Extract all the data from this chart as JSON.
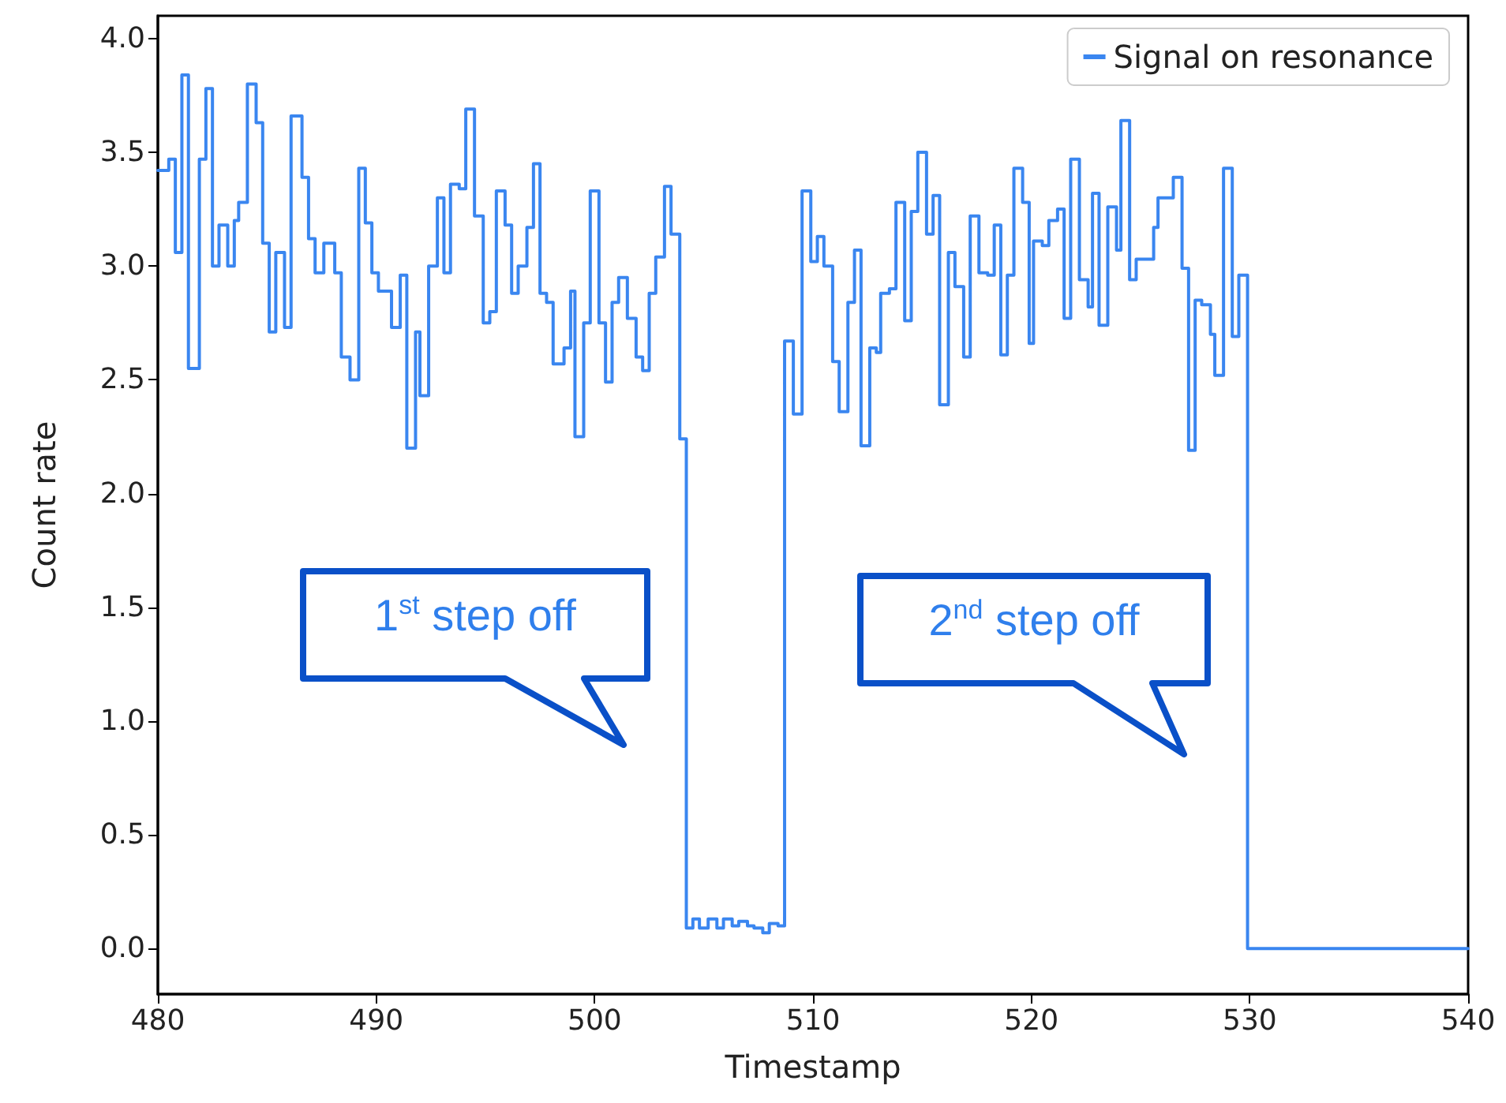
{
  "chart_data": {
    "type": "step",
    "xlabel": "Timestamp",
    "ylabel": "Count rate",
    "xlim": [
      480,
      540
    ],
    "xticks": [
      480,
      490,
      500,
      510,
      520,
      530,
      540
    ],
    "ylim": [
      -0.2,
      4.1
    ],
    "yticks": [
      {
        "value": 0,
        "label": "0.0"
      },
      0.5,
      {
        "value": 1,
        "label": "1.0"
      },
      1.5,
      {
        "value": 2,
        "label": "2.0"
      },
      2.5,
      {
        "value": 3,
        "label": "3.0"
      },
      3.5,
      {
        "value": 4,
        "label": "4.0"
      }
    ],
    "grid": false,
    "legend": "top right",
    "marker": "none",
    "line_style": "solid",
    "annotations": [
      "1$^{st}$ step off",
      "2$^{nd}$ step off"
    ],
    "series": [
      {
        "name": "Signal on resonance",
        "color": "#3a86f0",
        "x": [
          480.0,
          480.5,
          480.8,
          481.1,
          481.4,
          481.9,
          482.2,
          482.5,
          482.8,
          483.2,
          483.5,
          483.7,
          484.1,
          484.5,
          484.8,
          485.1,
          485.4,
          485.8,
          486.1,
          486.6,
          486.9,
          487.2,
          487.6,
          488.1,
          488.4,
          488.8,
          489.2,
          489.5,
          489.8,
          490.1,
          490.7,
          491.1,
          491.4,
          491.8,
          492.0,
          492.4,
          492.8,
          493.1,
          493.4,
          493.8,
          494.1,
          494.5,
          494.9,
          495.2,
          495.5,
          495.9,
          496.2,
          496.5,
          496.9,
          497.2,
          497.5,
          497.8,
          498.1,
          498.6,
          498.9,
          499.1,
          499.5,
          499.8,
          500.2,
          500.5,
          500.8,
          501.1,
          501.5,
          501.9,
          502.2,
          502.5,
          502.8,
          503.2,
          503.5,
          503.9,
          504.2,
          504.5,
          504.8,
          505.2,
          505.6,
          505.9,
          506.3,
          506.6,
          507.0,
          507.3,
          507.7,
          508.0,
          508.4,
          508.7,
          509.1,
          509.5,
          509.9,
          510.2,
          510.5,
          510.9,
          511.2,
          511.6,
          511.9,
          512.2,
          512.6,
          512.9,
          513.1,
          513.5,
          513.8,
          514.2,
          514.5,
          514.8,
          515.2,
          515.5,
          515.8,
          516.2,
          516.5,
          516.9,
          517.2,
          517.6,
          518.0,
          518.3,
          518.6,
          518.9,
          519.2,
          519.6,
          519.9,
          520.1,
          520.5,
          520.8,
          521.2,
          521.5,
          521.8,
          522.2,
          522.6,
          522.8,
          523.1,
          523.5,
          523.9,
          524.1,
          524.5,
          524.8,
          525.6,
          525.8,
          526.5,
          526.9,
          527.2,
          527.5,
          527.8,
          528.2,
          528.4,
          528.8,
          529.2,
          529.5,
          529.9,
          540.0
        ],
        "values": [
          3.42,
          3.47,
          3.06,
          3.84,
          2.55,
          3.47,
          3.78,
          3.0,
          3.18,
          3.0,
          3.2,
          3.28,
          3.8,
          3.63,
          3.1,
          2.71,
          3.06,
          2.73,
          3.66,
          3.39,
          3.12,
          2.97,
          3.1,
          2.97,
          2.6,
          2.5,
          3.43,
          3.19,
          2.97,
          2.89,
          2.73,
          2.96,
          2.2,
          2.71,
          2.43,
          3.0,
          3.3,
          2.97,
          3.36,
          3.34,
          3.69,
          3.22,
          2.75,
          2.8,
          3.33,
          3.18,
          2.88,
          3.0,
          3.17,
          3.45,
          2.88,
          2.84,
          2.57,
          2.64,
          2.89,
          2.25,
          2.75,
          3.33,
          2.75,
          2.49,
          2.84,
          2.95,
          2.77,
          2.6,
          2.54,
          2.88,
          3.04,
          3.35,
          3.14,
          2.24,
          0.09,
          0.13,
          0.09,
          0.13,
          0.09,
          0.13,
          0.1,
          0.12,
          0.1,
          0.09,
          0.07,
          0.11,
          0.1,
          2.67,
          2.35,
          3.33,
          3.02,
          3.13,
          3.0,
          2.58,
          2.36,
          2.84,
          3.07,
          2.21,
          2.64,
          2.62,
          2.88,
          2.9,
          3.28,
          2.76,
          3.24,
          3.5,
          3.14,
          3.31,
          2.39,
          3.06,
          2.91,
          2.6,
          3.22,
          2.97,
          2.96,
          3.18,
          2.61,
          2.96,
          3.43,
          3.28,
          2.66,
          3.11,
          3.09,
          3.2,
          3.25,
          2.77,
          3.47,
          2.94,
          2.82,
          3.32,
          2.74,
          3.26,
          3.07,
          3.64,
          2.94,
          3.03,
          3.17,
          3.3,
          3.39,
          2.99,
          2.19,
          2.85,
          2.83,
          2.7,
          2.52,
          3.43,
          2.69,
          2.96,
          0,
          0
        ]
      }
    ]
  }
}
